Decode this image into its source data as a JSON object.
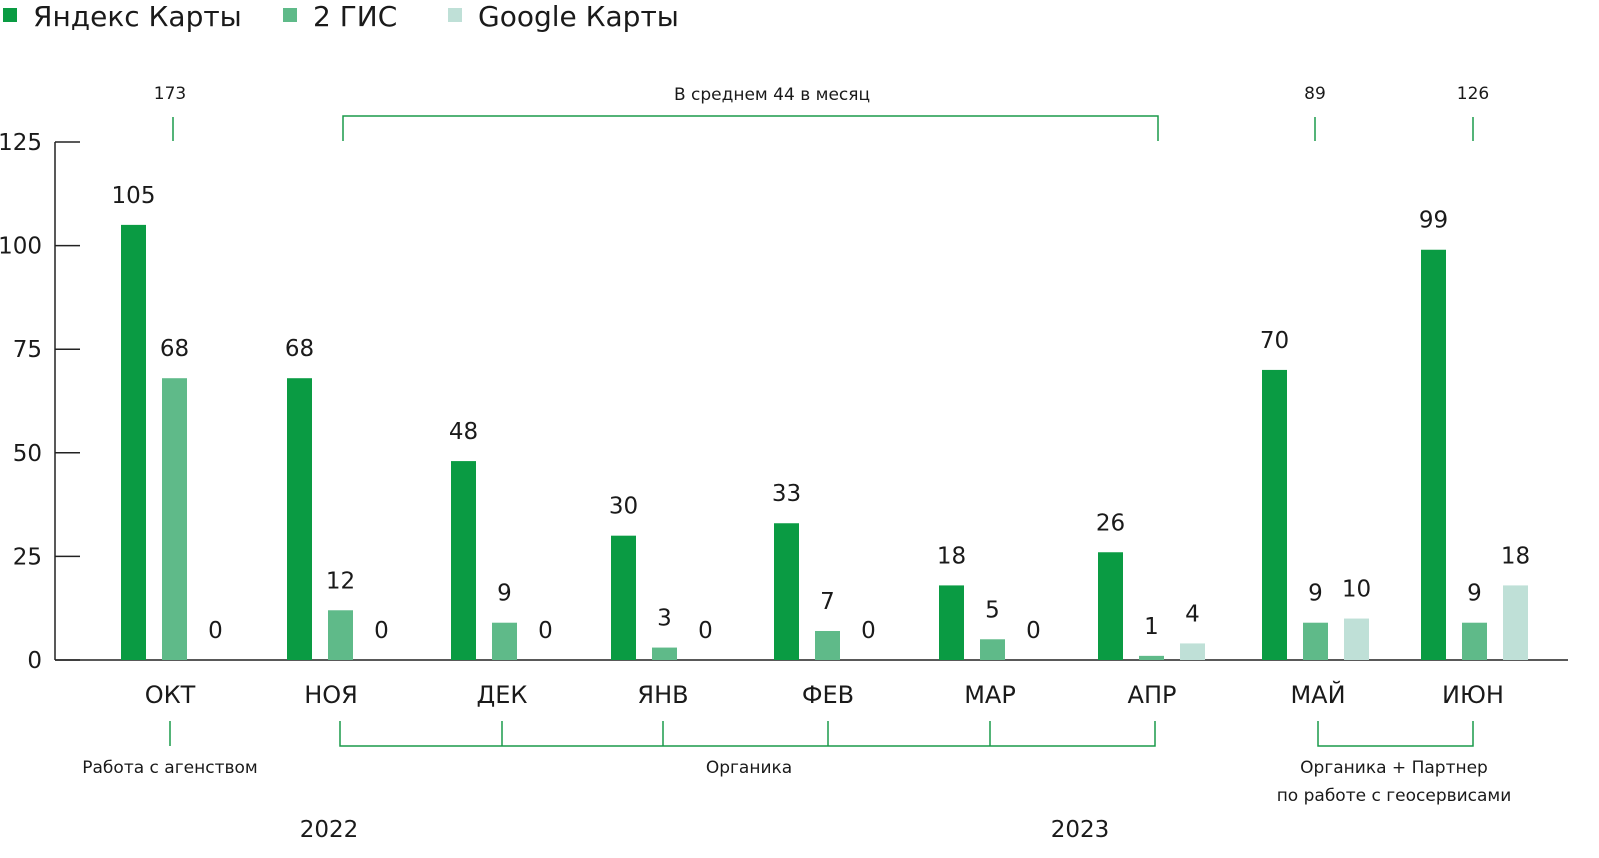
{
  "colors": {
    "yandex": "#0a9b43",
    "gis": "#5fba89",
    "google": "#bfe0d7",
    "bracket": "#1a9a4a",
    "axis": "#222222"
  },
  "chart_data": {
    "type": "bar",
    "legend": {
      "placement": "top-left",
      "entries": [
        "Яндекс Карты",
        "2 ГИС",
        "Google Карты"
      ]
    },
    "categories": [
      "ОКТ",
      "НОЯ",
      "ДЕК",
      "ЯНВ",
      "ФЕВ",
      "МАР",
      "АПР",
      "МАЙ",
      "ИЮН"
    ],
    "series": [
      {
        "name": "Яндекс Карты",
        "values": [
          105,
          68,
          48,
          30,
          33,
          18,
          26,
          70,
          99
        ]
      },
      {
        "name": "2 ГИС",
        "values": [
          68,
          12,
          9,
          3,
          7,
          5,
          1,
          9,
          9
        ]
      },
      {
        "name": "Google Карты",
        "values": [
          0,
          0,
          0,
          0,
          0,
          0,
          4,
          10,
          18
        ]
      }
    ],
    "value_labels": [
      [
        "105",
        "68",
        "48",
        "30",
        "33",
        "18",
        "26",
        "70",
        "99"
      ],
      [
        "68",
        "12",
        "9",
        "3",
        "7",
        "5",
        "1",
        "9",
        "9"
      ],
      [
        "0",
        "0",
        "0",
        "0",
        "0",
        "0",
        "4",
        "10",
        "18"
      ]
    ],
    "ylim": [
      0,
      125
    ],
    "yticks": [
      0,
      25,
      50,
      75,
      100,
      125
    ],
    "ytick_labels": [
      "0",
      "25",
      "50",
      "75",
      "100",
      "125"
    ],
    "grid": false,
    "top_annotations": [
      {
        "text": "173",
        "from": "ОКТ",
        "to": "ОКТ"
      },
      {
        "text": "В среднем 44 в месяц",
        "from": "НОЯ",
        "to": "АПР"
      },
      {
        "text": "89",
        "from": "МАЙ",
        "to": "МАЙ"
      },
      {
        "text": "126",
        "from": "ИЮН",
        "to": "ИЮН"
      }
    ],
    "bottom_annotations": [
      {
        "lines": [
          "Работа с агенством"
        ],
        "from": "ОКТ",
        "to": "ОКТ"
      },
      {
        "lines": [
          "Органика"
        ],
        "from": "НОЯ",
        "to": "АПР"
      },
      {
        "lines": [
          "Органика + Партнер",
          "по работе с геосервисами"
        ],
        "from": "МАЙ",
        "to": "ИЮН"
      }
    ],
    "years": [
      {
        "label": "2022",
        "under": "НОЯ"
      },
      {
        "label": "2023",
        "under": "МАР-АПР"
      }
    ]
  }
}
